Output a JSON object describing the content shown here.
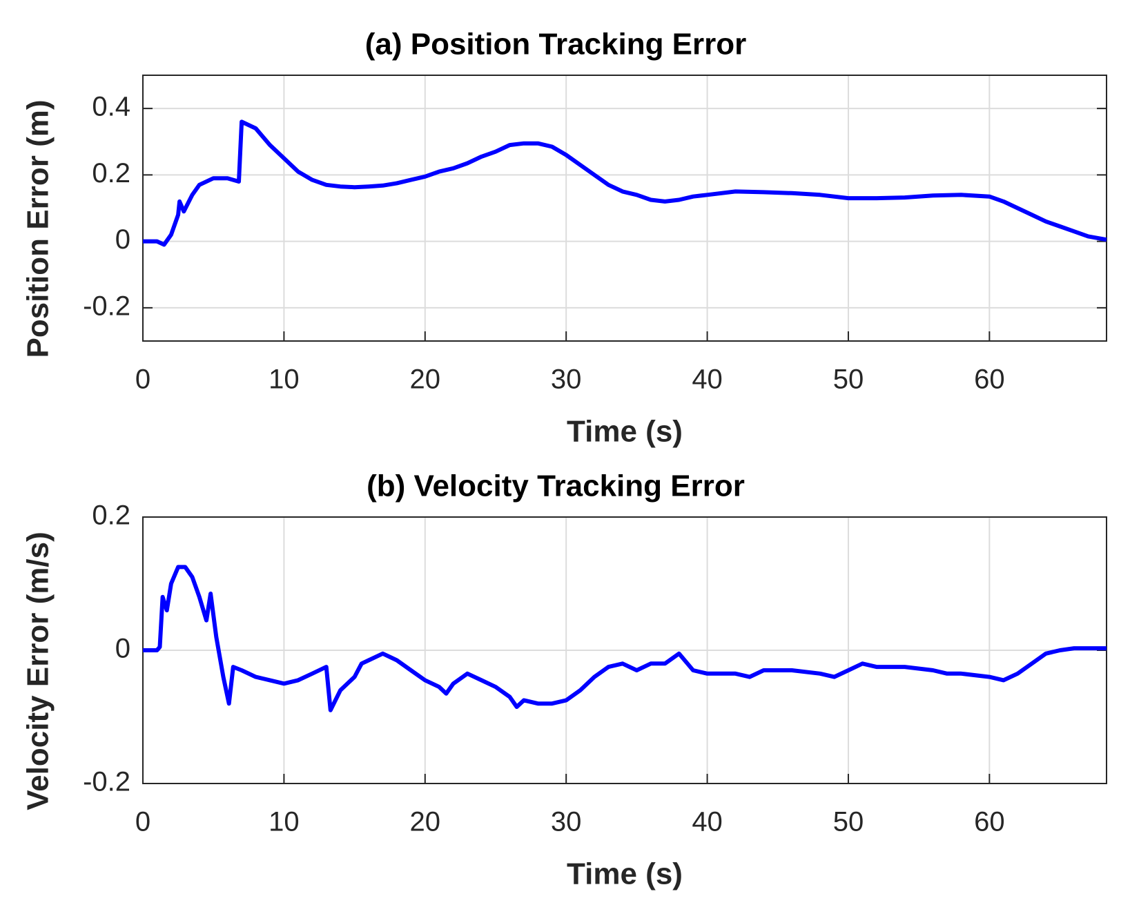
{
  "chart_data": [
    {
      "type": "line",
      "title": "(a) Position Tracking Error",
      "xlabel": "Time (s)",
      "ylabel": "Position Error (m)",
      "x": [
        0,
        1,
        1.5,
        2,
        2.5,
        2.6,
        2.9,
        3.5,
        4,
        5,
        6,
        6.8,
        7,
        8,
        9,
        10,
        11,
        12,
        13,
        14,
        15,
        16,
        17,
        18,
        19,
        20,
        21,
        22,
        23,
        24,
        25,
        26,
        27,
        28,
        29,
        30,
        31,
        32,
        33,
        34,
        35,
        36,
        37,
        38,
        39,
        40,
        42,
        44,
        46,
        48,
        50,
        52,
        54,
        56,
        58,
        60,
        61,
        62,
        63,
        64,
        65,
        66,
        67,
        68.3
      ],
      "series": [
        {
          "name": "Position Error",
          "color": "#0000ff",
          "values": [
            0,
            0,
            -0.01,
            0.02,
            0.08,
            0.12,
            0.09,
            0.14,
            0.17,
            0.19,
            0.19,
            0.18,
            0.36,
            0.34,
            0.29,
            0.25,
            0.21,
            0.185,
            0.17,
            0.165,
            0.163,
            0.165,
            0.168,
            0.175,
            0.185,
            0.195,
            0.21,
            0.22,
            0.235,
            0.255,
            0.27,
            0.29,
            0.295,
            0.295,
            0.285,
            0.26,
            0.23,
            0.2,
            0.17,
            0.15,
            0.14,
            0.125,
            0.12,
            0.125,
            0.135,
            0.14,
            0.15,
            0.148,
            0.145,
            0.14,
            0.13,
            0.13,
            0.132,
            0.138,
            0.14,
            0.135,
            0.12,
            0.1,
            0.08,
            0.06,
            0.045,
            0.03,
            0.015,
            0.005
          ]
        }
      ],
      "xlim": [
        0,
        68.3
      ],
      "ylim": [
        -0.3,
        0.5
      ],
      "xticks": [
        0,
        10,
        20,
        30,
        40,
        50,
        60
      ],
      "yticks": [
        -0.2,
        0,
        0.2,
        0.4
      ],
      "grid": true
    },
    {
      "type": "line",
      "title": "(b) Velocity Tracking Error",
      "xlabel": "Time (s)",
      "ylabel": "Velocity Error (m/s)",
      "x": [
        0,
        1,
        1.2,
        1.4,
        1.7,
        2,
        2.5,
        3,
        3.5,
        4,
        4.5,
        4.8,
        5.2,
        5.7,
        6.1,
        6.4,
        7,
        8,
        9,
        10,
        11,
        12,
        13,
        13.3,
        14,
        15,
        15.5,
        16,
        17,
        17.5,
        18,
        19,
        20,
        21,
        21.5,
        22,
        23,
        24,
        25,
        26,
        26.5,
        27,
        28,
        29,
        30,
        31,
        32,
        33,
        34,
        35,
        36,
        37,
        38,
        39,
        40,
        42,
        43,
        44,
        46,
        48,
        49,
        50,
        51,
        52,
        54,
        56,
        57,
        58,
        60,
        61,
        62,
        63,
        64,
        65,
        66,
        68.3
      ],
      "series": [
        {
          "name": "Velocity Error",
          "color": "#0000ff",
          "values": [
            0,
            0,
            0.005,
            0.08,
            0.06,
            0.1,
            0.125,
            0.125,
            0.11,
            0.08,
            0.045,
            0.085,
            0.02,
            -0.04,
            -0.08,
            -0.025,
            -0.03,
            -0.04,
            -0.045,
            -0.05,
            -0.045,
            -0.035,
            -0.025,
            -0.09,
            -0.06,
            -0.04,
            -0.02,
            -0.015,
            -0.005,
            -0.01,
            -0.015,
            -0.03,
            -0.045,
            -0.055,
            -0.065,
            -0.05,
            -0.035,
            -0.045,
            -0.055,
            -0.07,
            -0.085,
            -0.075,
            -0.08,
            -0.08,
            -0.075,
            -0.06,
            -0.04,
            -0.025,
            -0.02,
            -0.03,
            -0.02,
            -0.02,
            -0.005,
            -0.03,
            -0.035,
            -0.035,
            -0.04,
            -0.03,
            -0.03,
            -0.035,
            -0.04,
            -0.03,
            -0.02,
            -0.025,
            -0.025,
            -0.03,
            -0.035,
            -0.035,
            -0.04,
            -0.045,
            -0.035,
            -0.02,
            -0.005,
            0,
            0.003,
            0.003
          ]
        }
      ],
      "xlim": [
        0,
        68.3
      ],
      "ylim": [
        -0.2,
        0.2
      ],
      "xticks": [
        0,
        10,
        20,
        30,
        40,
        50,
        60
      ],
      "yticks": [
        -0.2,
        0,
        0.2
      ],
      "grid": true
    }
  ]
}
